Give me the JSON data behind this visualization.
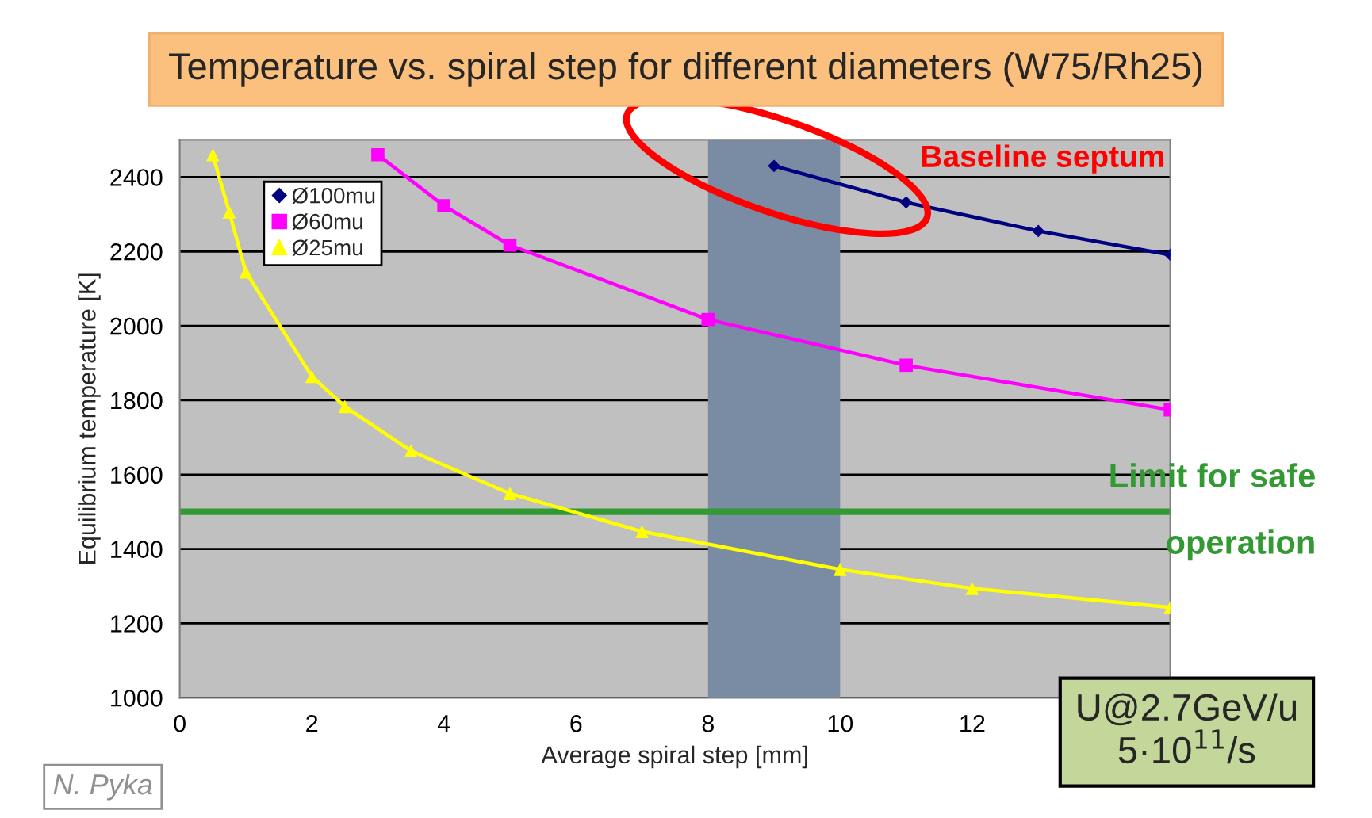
{
  "chart_data": {
    "type": "line",
    "title": "Temperature vs. spiral step for different diameters (W75/Rh25)",
    "xlabel": "Average spiral step [mm]",
    "ylabel": "Equilibrium temperature [K]",
    "xlim": [
      0,
      15
    ],
    "xticks": [
      0,
      2,
      4,
      6,
      8,
      10,
      12
    ],
    "ylim": [
      1000,
      2500
    ],
    "yticks": [
      1000,
      1200,
      1400,
      1600,
      1800,
      2000,
      2200,
      2400
    ],
    "grid": "y",
    "legend": "top left",
    "series": [
      {
        "name": "Ø100mu",
        "color": "#000080",
        "marker": "diamond",
        "x": [
          9,
          11,
          13,
          15
        ],
        "values": [
          2430,
          2332,
          2255,
          2191
        ]
      },
      {
        "name": "Ø60mu",
        "color": "#ff00ff",
        "marker": "square",
        "x": [
          3,
          4,
          5,
          8,
          11,
          15
        ],
        "values": [
          2460,
          2323,
          2217,
          2017,
          1894,
          1774
        ]
      },
      {
        "name": "Ø25mu",
        "color": "#ffff00",
        "marker": "triangle",
        "x": [
          0.5,
          0.75,
          1,
          2,
          2.5,
          3.5,
          5,
          7,
          10,
          12,
          15
        ],
        "values": [
          2460,
          2306,
          2145,
          1864,
          1783,
          1664,
          1549,
          1447,
          1345,
          1294,
          1243
        ]
      }
    ],
    "bands": [
      {
        "axis": "x",
        "from": 8,
        "to": 10,
        "color": "#7a8ca4"
      }
    ],
    "ref_lines": [
      {
        "axis": "y",
        "value": 1500,
        "label": "Limit for safe operation",
        "color": "#339933"
      }
    ],
    "annotations": [
      "Baseline septum",
      "U@2.7GeV/u\n5·10$^{11}$/s",
      "N. Pyka"
    ]
  }
}
